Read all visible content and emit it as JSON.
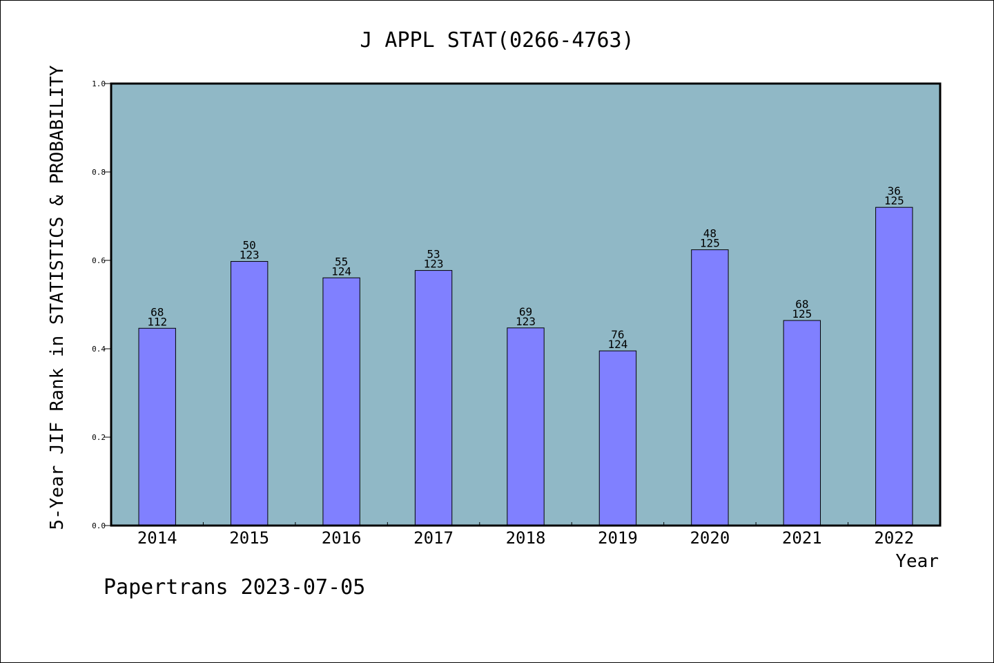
{
  "chart_data": {
    "type": "bar",
    "title": "J APPL STAT(0266-4763)",
    "xlabel": "Year",
    "ylabel": "5-Year JIF Rank in STATISTICS & PROBABILITY",
    "categories": [
      "2014",
      "2015",
      "2016",
      "2017",
      "2018",
      "2019",
      "2020",
      "2021",
      "2022"
    ],
    "values": [
      0.4464,
      0.5976,
      0.5605,
      0.5772,
      0.4472,
      0.3952,
      0.624,
      0.464,
      0.72
    ],
    "rank": [
      "68",
      "50",
      "55",
      "53",
      "69",
      "76",
      "48",
      "68",
      "36"
    ],
    "total": [
      "112",
      "123",
      "124",
      "123",
      "123",
      "124",
      "125",
      "125",
      "125"
    ],
    "ylim": [
      0,
      1.0
    ],
    "yticks": [
      "0.0",
      "0.2",
      "0.4",
      "0.6",
      "0.8",
      "1.0"
    ],
    "grid": false,
    "colors": {
      "plot_background": "#90b8c6",
      "bar_fill": "#8080ff",
      "bar_edge": "#000000"
    }
  },
  "footer": "Papertrans 2023-07-05"
}
